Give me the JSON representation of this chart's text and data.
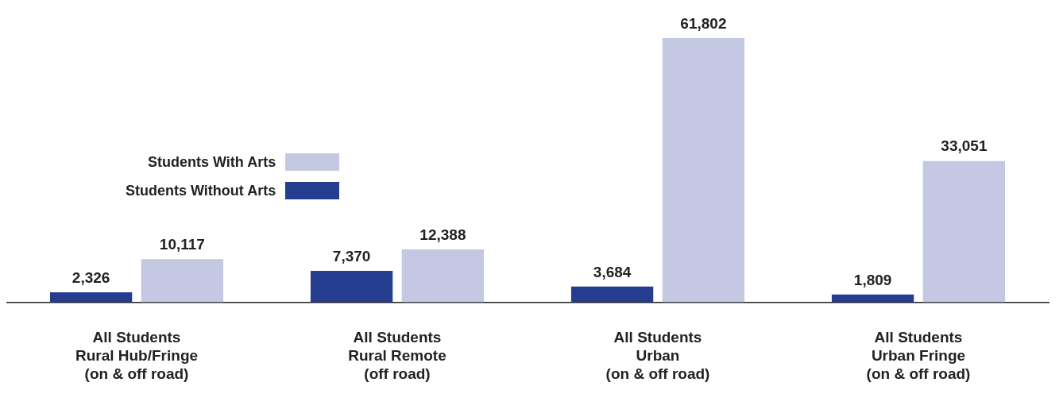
{
  "chart_data": {
    "type": "bar",
    "categories": [
      "All Students\nRural Hub/Fringe\n(on & off road)",
      "All Students\nRural Remote\n(off road)",
      "All Students\nUrban\n(on & off road)",
      "All Students\nUrban Fringe\n(on & off road)"
    ],
    "series": [
      {
        "name": "Students Without Arts",
        "color": "#253d8f",
        "values": [
          2326,
          7370,
          3684,
          1809
        ],
        "value_labels": [
          "2,326",
          "7,370",
          "3,684",
          "1,809"
        ]
      },
      {
        "name": "Students With Arts",
        "color": "#c4c8e3",
        "values": [
          10117,
          12388,
          61802,
          33051
        ],
        "value_labels": [
          "10,117",
          "12,388",
          "61,802",
          "33,051"
        ]
      }
    ],
    "legend": "left",
    "grid": false
  }
}
